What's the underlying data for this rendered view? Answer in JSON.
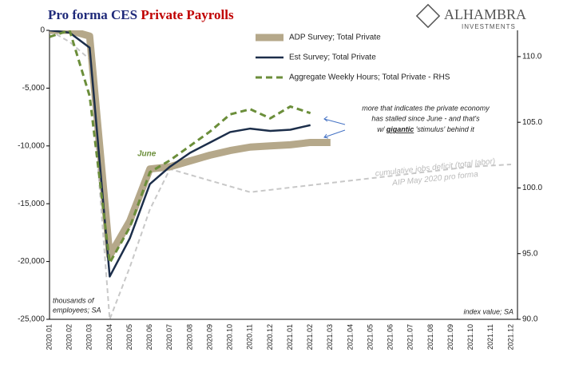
{
  "chart_data": {
    "type": "line",
    "title": [
      "Pro forma CES ",
      "Private Payrolls"
    ],
    "title_colors": [
      "#1f2a7a",
      "#c00000"
    ],
    "logo": [
      "ALHAMBRA",
      "INVESTMENTS"
    ],
    "categories": [
      "2020.01",
      "2020.02",
      "2020.03",
      "2020.04",
      "2020.05",
      "2020.06",
      "2020.07",
      "2020.08",
      "2020.09",
      "2020.10",
      "2020.11",
      "2020.12",
      "2021.01",
      "2021.02",
      "2021.03",
      "2021.04",
      "2021.05",
      "2021.06",
      "2021.07",
      "2021.08",
      "2021.09",
      "2021.10",
      "2021.11",
      "2021.12"
    ],
    "ylim": [
      -25000,
      0
    ],
    "yticks": [
      {
        "value": -25000,
        "label": "-25,000"
      },
      {
        "value": -20000,
        "label": "-20,000"
      },
      {
        "value": -15000,
        "label": "-15,000"
      },
      {
        "value": -10000,
        "label": "-10,000"
      },
      {
        "value": -5000,
        "label": "-5,000"
      },
      0
    ],
    "y2lim": [
      90,
      112
    ],
    "y2ticks": [
      {
        "value": 90,
        "label": "90.0"
      },
      {
        "value": 95,
        "label": "95.0"
      },
      {
        "value": 100,
        "label": "100.0"
      },
      {
        "value": 105,
        "label": "105.0"
      },
      {
        "value": 110,
        "label": "110.0"
      }
    ],
    "series": [
      {
        "name": "ADP Survey; Total Private",
        "color": "#b5a88a",
        "width": 9,
        "dash": "none",
        "values": [
          0,
          0,
          -500,
          -19500,
          -16500,
          -12000,
          -11800,
          -11300,
          -10800,
          -10400,
          -10100,
          -10000,
          -9900,
          -9700,
          -9700,
          null,
          null,
          null,
          null,
          null,
          null,
          null,
          null,
          null
        ]
      },
      {
        "name": "Est Survey; Total Private",
        "color": "#1c2e4a",
        "width": 2.5,
        "dash": "none",
        "values": [
          0,
          -200,
          -1500,
          -21300,
          -18000,
          -13300,
          -11800,
          -10600,
          -9700,
          -8800,
          -8500,
          -8700,
          -8600,
          -8200,
          null,
          null,
          null,
          null,
          null,
          null,
          null,
          null,
          null,
          null
        ]
      },
      {
        "name": "Aggregate Weekly Hours; Total Private - RHS",
        "color": "#6b8e3a",
        "width": 3,
        "dash": "8 5",
        "axis": "y2",
        "values": [
          111.5,
          112,
          107,
          94.3,
          97,
          101.2,
          102.1,
          103.2,
          104.3,
          105.6,
          106,
          105.3,
          106.2,
          105.7,
          null,
          null,
          null,
          null,
          null,
          null,
          null,
          null,
          null,
          null
        ]
      },
      {
        "color": "#c8c8c8",
        "width": 2,
        "dash": "6 4",
        "values": [
          0,
          -1000,
          -2500,
          -25000,
          -20500,
          -15500,
          -12000,
          -12500,
          -13000,
          -13500,
          -14000,
          -13800,
          -13600,
          -13400,
          -13200,
          -13000,
          -12800,
          -12600,
          -12400,
          -12200,
          -12000,
          -11800,
          -11700,
          -11600
        ]
      }
    ],
    "annotations": {
      "june": "June",
      "deficit": [
        "cumulative jobs deficit (total labor)",
        "AIP May 2020 pro forma"
      ],
      "comment": [
        "more that indicates the private economy",
        "has stalled since June - and that's"
      ],
      "comment_last": [
        "w/ ",
        "gigantic",
        " 'stimulus' behind it"
      ],
      "left_unit": [
        "thousands of",
        "employees; SA"
      ],
      "right_unit": "index value; SA"
    }
  }
}
